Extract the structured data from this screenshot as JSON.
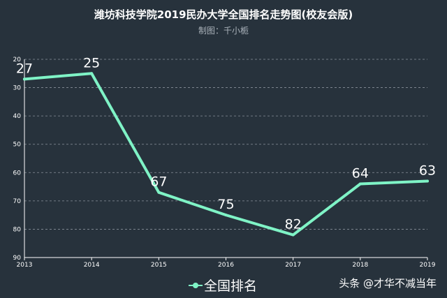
{
  "chart_data": {
    "type": "line",
    "title": "潍坊科技学院2019民办大学全国排名走势图(校友会版)",
    "subtitle": "制图：千小栀",
    "categories": [
      "2013",
      "2014",
      "2015",
      "2016",
      "2017",
      "2018",
      "2019"
    ],
    "series": [
      {
        "name": "全国排名",
        "values": [
          27,
          25,
          67,
          75,
          82,
          64,
          63
        ]
      }
    ],
    "yticks": [
      "20",
      "30",
      "40",
      "50",
      "60",
      "70",
      "80",
      "90"
    ],
    "ylim": [
      20,
      90
    ],
    "y_inverted": true,
    "grid": true,
    "legend_position": "bottom-center",
    "colors": {
      "background": "#27323c",
      "line": "#7ff3c6",
      "grid": "#8a939c"
    }
  },
  "watermark": "头条 @才华不减当年"
}
